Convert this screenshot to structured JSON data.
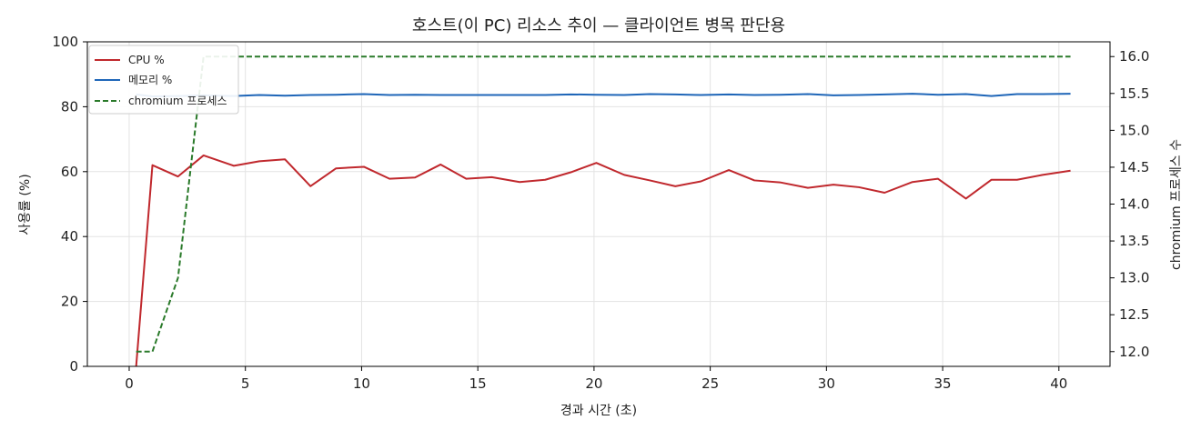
{
  "chart_data": {
    "type": "line",
    "title": "호스트(이 PC) 리소스 추이 — 클라이언트 병목 판단용",
    "xlabel": "경과 시간 (초)",
    "ylabel": "사용률 (%)",
    "y2label": "chromium 프로세스 수",
    "xlim": [
      -1.8,
      42.2
    ],
    "ylim": [
      0,
      100
    ],
    "y2lim": [
      11.8,
      16.2
    ],
    "xticks": [
      0,
      5,
      10,
      15,
      20,
      25,
      30,
      35,
      40
    ],
    "yticks": [
      0,
      20,
      40,
      60,
      80,
      100
    ],
    "y2ticks": [
      12.0,
      12.5,
      13.0,
      13.5,
      14.0,
      14.5,
      15.0,
      15.5,
      16.0
    ],
    "y2tick_labels": [
      "12.0",
      "12.5",
      "13.0",
      "13.5",
      "14.0",
      "14.5",
      "15.0",
      "15.5",
      "16.0"
    ],
    "grid": true,
    "legend_position": "top-left",
    "x": [
      0.3,
      1.0,
      2.1,
      3.2,
      4.5,
      5.6,
      6.7,
      7.8,
      8.9,
      10.1,
      11.2,
      12.3,
      13.4,
      14.5,
      15.6,
      16.8,
      17.9,
      19.0,
      20.1,
      21.3,
      22.4,
      23.5,
      24.6,
      25.8,
      26.9,
      28.0,
      29.2,
      30.3,
      31.4,
      32.5,
      33.7,
      34.8,
      36.0,
      37.1,
      38.2,
      39.3,
      40.5
    ],
    "series": [
      {
        "name": "CPU %",
        "axis": "left",
        "color": "#c0282d",
        "style": "solid",
        "values": [
          0,
          62,
          58.5,
          65,
          61.8,
          63.2,
          63.8,
          55.5,
          61,
          61.5,
          57.8,
          58.2,
          62.2,
          57.8,
          58.3,
          56.8,
          57.5,
          59.8,
          62.7,
          59,
          57.3,
          55.5,
          57,
          60.5,
          57.3,
          56.7,
          55,
          56,
          55.2,
          53.5,
          56.8,
          57.8,
          51.7,
          57.5,
          57.5,
          59,
          60.3
        ]
      },
      {
        "name": "메모리 %",
        "axis": "left",
        "color": "#1f66b8",
        "style": "solid",
        "values": [
          83.8,
          83.2,
          83.3,
          83.5,
          83.3,
          83.6,
          83.4,
          83.6,
          83.7,
          83.9,
          83.6,
          83.7,
          83.6,
          83.6,
          83.6,
          83.6,
          83.6,
          83.8,
          83.7,
          83.6,
          83.9,
          83.8,
          83.6,
          83.8,
          83.6,
          83.7,
          83.9,
          83.5,
          83.6,
          83.8,
          84.0,
          83.7,
          83.9,
          83.3,
          83.9,
          83.9,
          84.0
        ]
      },
      {
        "name": "chromium 프로세스",
        "axis": "right",
        "color": "#2a7a2a",
        "style": "dashed",
        "values": [
          12,
          12,
          13,
          16,
          16,
          16,
          16,
          16,
          16,
          16,
          16,
          16,
          16,
          16,
          16,
          16,
          16,
          16,
          16,
          16,
          16,
          16,
          16,
          16,
          16,
          16,
          16,
          16,
          16,
          16,
          16,
          16,
          16,
          16,
          16,
          16,
          16
        ]
      }
    ]
  }
}
